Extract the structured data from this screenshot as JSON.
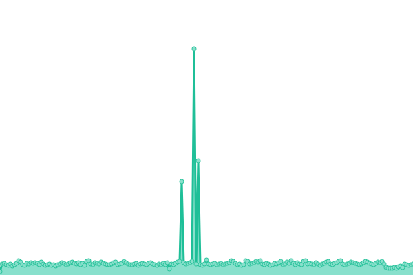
{
  "chart_data": {
    "type": "area",
    "title": "",
    "xlabel": "",
    "ylabel": "",
    "x_range": [
      0,
      200
    ],
    "ylim": [
      0,
      400
    ],
    "grid": false,
    "axes_visible": false,
    "markers": true,
    "colors": {
      "line": "#1fbf98",
      "fill": "#88e0cc",
      "marker_stroke": "#2cc39c",
      "marker_fill": "#88e0cc"
    },
    "series": [
      {
        "values": [
          5,
          16,
          17,
          15,
          14,
          16,
          13,
          15,
          17,
          21,
          19,
          15,
          14,
          17,
          16,
          18,
          17,
          18,
          17,
          15,
          19,
          16,
          14,
          15,
          16,
          14,
          15,
          13,
          15,
          16,
          18,
          17,
          15,
          16,
          18,
          19,
          17,
          16,
          18,
          15,
          17,
          14,
          20,
          21,
          16,
          15,
          18,
          17,
          16,
          19,
          17,
          16,
          15,
          15,
          16,
          18,
          19,
          15,
          16,
          17,
          20,
          18,
          16,
          15,
          15,
          16,
          17,
          14,
          16,
          17,
          16,
          15,
          17,
          18,
          16,
          15,
          14,
          16,
          15,
          17,
          15,
          18,
          9,
          16,
          15,
          17,
          19,
          20,
          136,
          18,
          16,
          17,
          18,
          20,
          329,
          16,
          166,
          15,
          14,
          16,
          22,
          16,
          15,
          16,
          17,
          15,
          16,
          17,
          15,
          16,
          17,
          18,
          21,
          20,
          17,
          15,
          16,
          14,
          15,
          21,
          20,
          16,
          17,
          18,
          20,
          19,
          21,
          16,
          15,
          17,
          16,
          14,
          15,
          17,
          16,
          18,
          20,
          15,
          16,
          19,
          17,
          21,
          17,
          15,
          18,
          16,
          15,
          20,
          21,
          16,
          17,
          16,
          15,
          18,
          16,
          14,
          16,
          17,
          19,
          20,
          16,
          15,
          17,
          18,
          20,
          21,
          16,
          15,
          16,
          17,
          19,
          18,
          17,
          16,
          15,
          16,
          18,
          20,
          19,
          17,
          16,
          15,
          17,
          19,
          18,
          20,
          16,
          11,
          10,
          10,
          10,
          11,
          10,
          12,
          13,
          11,
          16,
          15,
          14,
          15,
          16
        ]
      }
    ]
  }
}
